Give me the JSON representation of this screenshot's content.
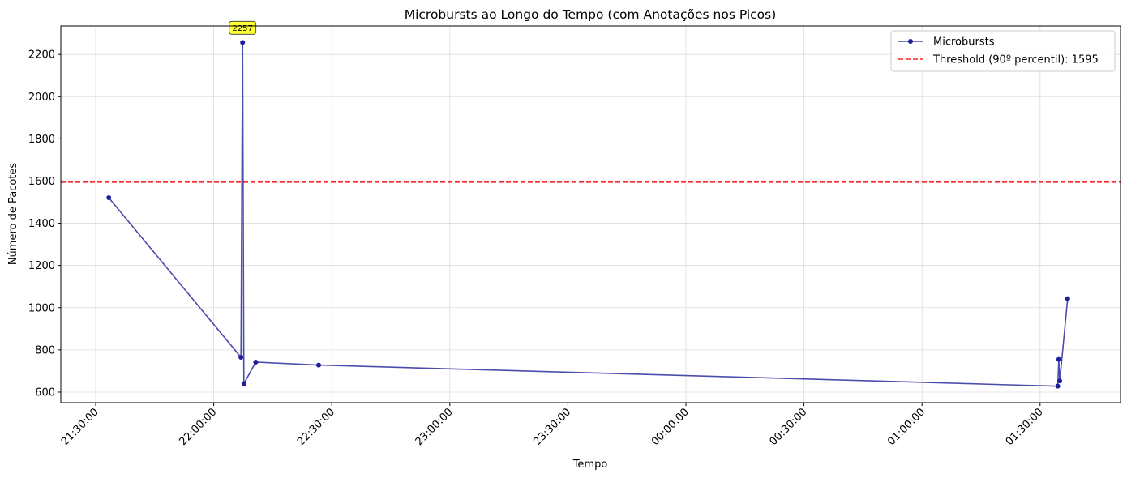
{
  "chart_data": {
    "type": "line",
    "title": "Microbursts ao Longo do Tempo (com Anotações nos Picos)",
    "xlabel": "Tempo",
    "ylabel": "Número de Pacotes",
    "x_tick_labels": [
      "21:30:00",
      "22:00:00",
      "22:30:00",
      "23:00:00",
      "23:30:00",
      "00:00:00",
      "00:30:00",
      "01:00:00",
      "01:30:00"
    ],
    "y_ticks": [
      600,
      800,
      1000,
      1200,
      1400,
      1600,
      1800,
      2000,
      2200
    ],
    "ylim": [
      550,
      2335
    ],
    "grid": true,
    "legend_position": "upper right",
    "series": [
      {
        "name": "Microbursts",
        "color": "#1f1f99",
        "marker": "circle",
        "x": [
          "21:33:20",
          "22:06:55",
          "22:07:20",
          "22:07:40",
          "22:10:40",
          "22:26:40",
          "01:34:30",
          "01:34:45",
          "01:35:00",
          "01:37:00"
        ],
        "values": [
          1521,
          765,
          2257,
          640,
          742,
          728,
          628,
          755,
          653,
          1043
        ]
      }
    ],
    "threshold": {
      "label": "Threshold (90º percentil): 1595",
      "value": 1595,
      "color": "#ff0000",
      "style": "dashed"
    },
    "annotations": [
      {
        "x": "22:07:20",
        "y": 2257,
        "text": "2257"
      }
    ]
  }
}
